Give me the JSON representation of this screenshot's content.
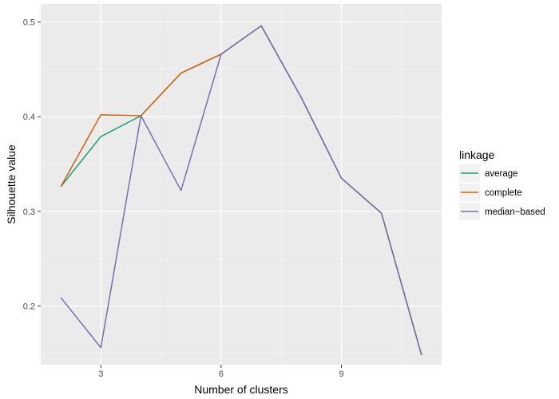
{
  "chart_data": {
    "type": "line",
    "xlabel": "Number of clusters",
    "ylabel": "Silhouette value",
    "xlim": [
      1.5,
      11.5
    ],
    "ylim": [
      0.138,
      0.519
    ],
    "x_ticks": [
      3,
      6,
      9
    ],
    "x_minor_ticks": [
      4.5,
      7.5,
      10.5
    ],
    "y_ticks": [
      0.2,
      0.3,
      0.4,
      0.5
    ],
    "y_tick_labels": [
      "0.2",
      "0.3",
      "0.4",
      "0.5"
    ],
    "y_minor_ticks": [
      0.15,
      0.25,
      0.35,
      0.45
    ],
    "grid": true,
    "legend": {
      "title": "linkage",
      "position": "right"
    },
    "x": [
      2,
      3,
      4,
      5,
      6,
      7,
      8,
      9,
      10,
      11
    ],
    "series": [
      {
        "name": "average",
        "color": "#1b9e77",
        "values": [
          0.326,
          0.379,
          0.401,
          0.446,
          0.466,
          0.496,
          0.42,
          0.335,
          0.298,
          0.148
        ]
      },
      {
        "name": "complete",
        "color": "#d95f02",
        "values": [
          0.326,
          0.402,
          0.401,
          0.446,
          0.466,
          0.496,
          0.42,
          0.335,
          0.298,
          0.148
        ]
      },
      {
        "name": "median−based",
        "color": "#7570b3",
        "values": [
          0.209,
          0.156,
          0.401,
          0.322,
          0.466,
          0.496,
          0.42,
          0.335,
          0.298,
          0.148
        ]
      }
    ],
    "panel_background": "#ebebeb"
  }
}
